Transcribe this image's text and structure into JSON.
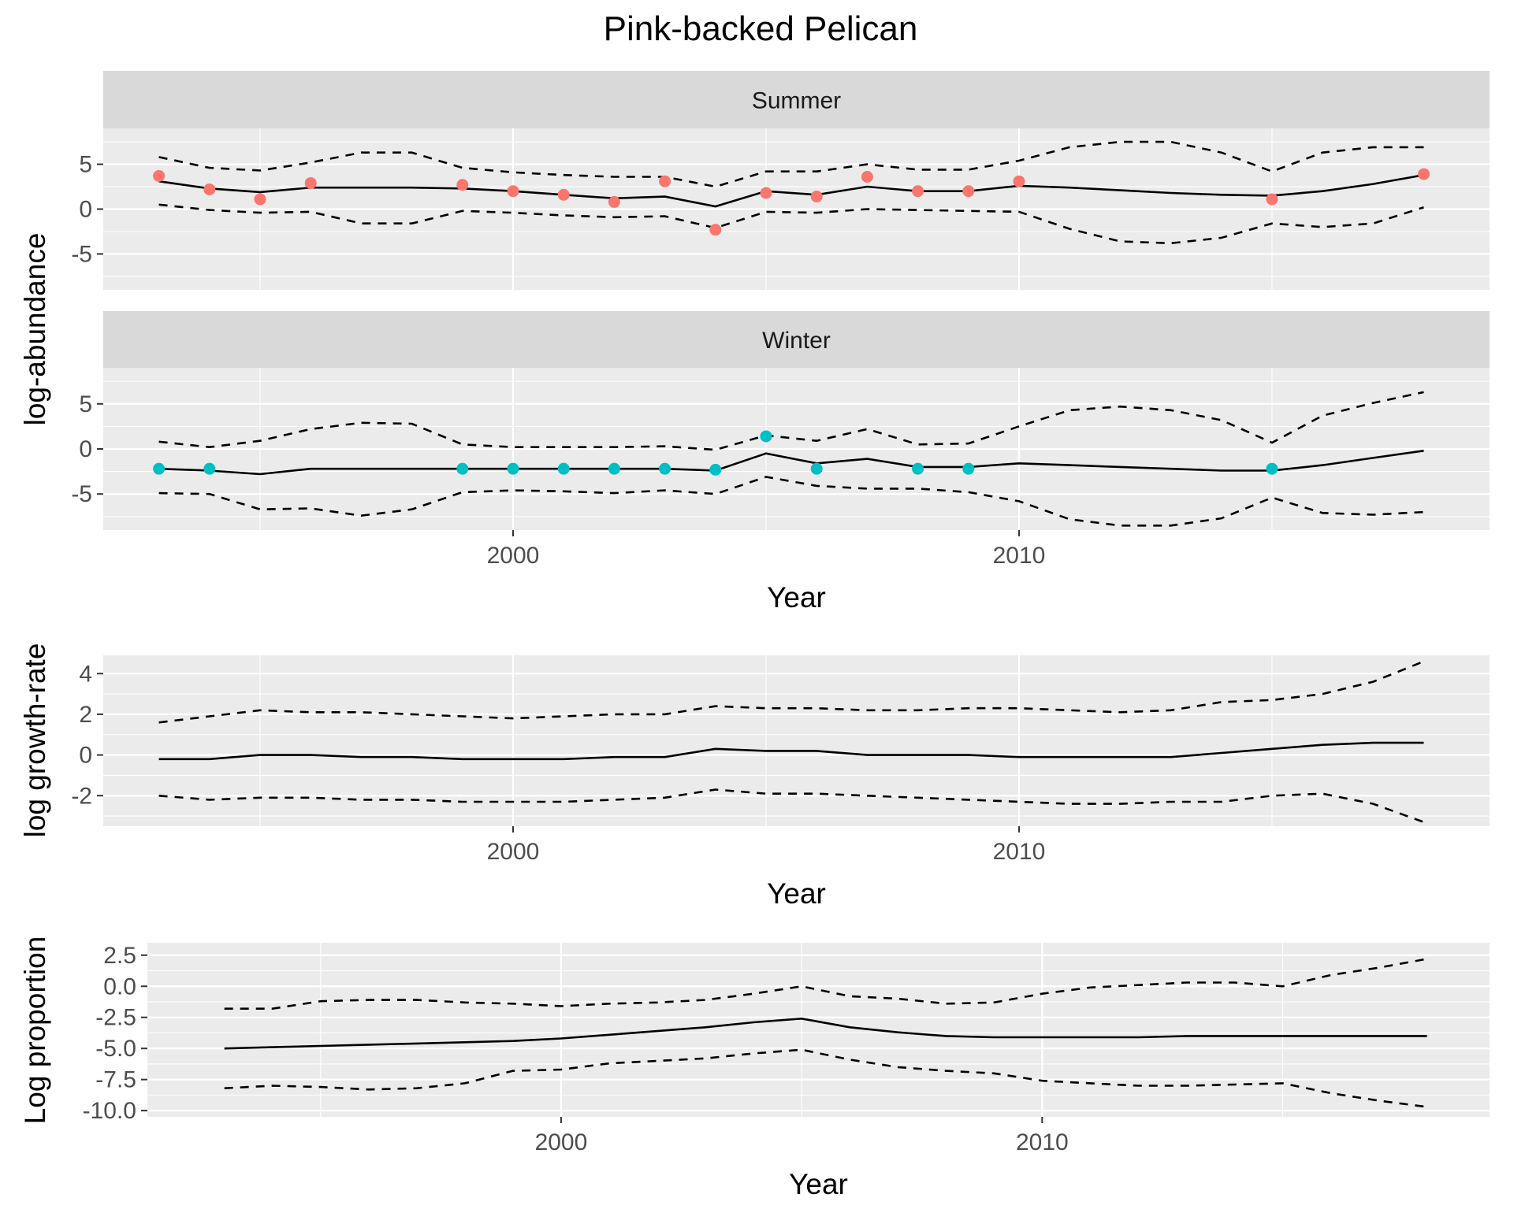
{
  "title": "Pink-backed Pelican",
  "colors": {
    "summer_points": "#F8766D",
    "winter_points": "#00BFC4",
    "line": "#000000",
    "panel_background": "#EBEBEB",
    "strip_background": "#D9D9D9"
  },
  "chart_data": [
    {
      "type": "line",
      "name": "abundance",
      "ylabel": "log-abundance",
      "xlabel": "Year",
      "xlim": [
        1991.9,
        2019.3
      ],
      "ylim": [
        -9,
        9
      ],
      "y_breaks": [
        -5,
        0,
        5
      ],
      "x_breaks": [
        2000,
        2010
      ],
      "grid": true,
      "facets": [
        {
          "strip": "Summer",
          "point_color": "#F8766D",
          "x": [
            1993,
            1994,
            1995,
            1996,
            1997,
            1998,
            1999,
            2000,
            2001,
            2002,
            2003,
            2004,
            2005,
            2006,
            2007,
            2008,
            2009,
            2010,
            2011,
            2012,
            2013,
            2014,
            2015,
            2016,
            2017,
            2018
          ],
          "estimate": [
            3.1,
            2.3,
            1.9,
            2.4,
            2.4,
            2.4,
            2.3,
            2.0,
            1.6,
            1.2,
            1.4,
            0.3,
            2.0,
            1.6,
            2.5,
            2.0,
            2.0,
            2.6,
            2.4,
            2.1,
            1.8,
            1.6,
            1.5,
            2.0,
            2.8,
            3.8
          ],
          "lower": [
            0.5,
            -0.1,
            -0.4,
            -0.3,
            -1.6,
            -1.6,
            -0.2,
            -0.4,
            -0.7,
            -0.9,
            -0.8,
            -2.1,
            -0.3,
            -0.4,
            0.0,
            -0.1,
            -0.2,
            -0.3,
            -2.2,
            -3.6,
            -3.8,
            -3.2,
            -1.6,
            -2.0,
            -1.6,
            0.2
          ],
          "upper": [
            5.8,
            4.6,
            4.3,
            5.2,
            6.3,
            6.3,
            4.6,
            4.1,
            3.8,
            3.6,
            3.6,
            2.5,
            4.2,
            4.2,
            5.0,
            4.4,
            4.4,
            5.4,
            6.9,
            7.5,
            7.5,
            6.3,
            4.2,
            6.3,
            6.9,
            6.9
          ],
          "observed": [
            {
              "x": 1993,
              "y": 3.7
            },
            {
              "x": 1994,
              "y": 2.2
            },
            {
              "x": 1995,
              "y": 1.1
            },
            {
              "x": 1996,
              "y": 2.9
            },
            {
              "x": 1999,
              "y": 2.7
            },
            {
              "x": 2000,
              "y": 2.0
            },
            {
              "x": 2001,
              "y": 1.6
            },
            {
              "x": 2002,
              "y": 0.8
            },
            {
              "x": 2003,
              "y": 3.1
            },
            {
              "x": 2004,
              "y": -2.3
            },
            {
              "x": 2005,
              "y": 1.8
            },
            {
              "x": 2006,
              "y": 1.4
            },
            {
              "x": 2007,
              "y": 3.6
            },
            {
              "x": 2008,
              "y": 2.0
            },
            {
              "x": 2009,
              "y": 2.0
            },
            {
              "x": 2010,
              "y": 3.1
            },
            {
              "x": 2015,
              "y": 1.1
            },
            {
              "x": 2018,
              "y": 3.9
            }
          ]
        },
        {
          "strip": "Winter",
          "point_color": "#00BFC4",
          "x": [
            1993,
            1994,
            1995,
            1996,
            1997,
            1998,
            1999,
            2000,
            2001,
            2002,
            2003,
            2004,
            2005,
            2006,
            2007,
            2008,
            2009,
            2010,
            2011,
            2012,
            2013,
            2014,
            2015,
            2016,
            2017,
            2018
          ],
          "estimate": [
            -2.2,
            -2.4,
            -2.8,
            -2.2,
            -2.2,
            -2.2,
            -2.2,
            -2.2,
            -2.2,
            -2.2,
            -2.2,
            -2.4,
            -0.5,
            -1.6,
            -1.1,
            -2.0,
            -2.0,
            -1.6,
            -1.8,
            -2.0,
            -2.2,
            -2.4,
            -2.4,
            -1.8,
            -1.0,
            -0.2
          ],
          "lower": [
            -4.9,
            -5.0,
            -6.7,
            -6.6,
            -7.4,
            -6.7,
            -4.8,
            -4.6,
            -4.7,
            -4.9,
            -4.6,
            -5.0,
            -3.1,
            -4.1,
            -4.4,
            -4.4,
            -4.8,
            -5.8,
            -7.8,
            -8.5,
            -8.5,
            -7.7,
            -5.4,
            -7.1,
            -7.3,
            -7.0
          ],
          "upper": [
            0.8,
            0.2,
            0.9,
            2.2,
            2.9,
            2.8,
            0.5,
            0.2,
            0.2,
            0.2,
            0.3,
            -0.1,
            1.5,
            0.9,
            2.2,
            0.5,
            0.6,
            2.5,
            4.3,
            4.7,
            4.3,
            3.2,
            0.7,
            3.7,
            5.1,
            6.3
          ],
          "observed": [
            {
              "x": 1993,
              "y": -2.2
            },
            {
              "x": 1994,
              "y": -2.2
            },
            {
              "x": 1999,
              "y": -2.2
            },
            {
              "x": 2000,
              "y": -2.2
            },
            {
              "x": 2001,
              "y": -2.2
            },
            {
              "x": 2002,
              "y": -2.2
            },
            {
              "x": 2003,
              "y": -2.2
            },
            {
              "x": 2004,
              "y": -2.3
            },
            {
              "x": 2005,
              "y": 1.4
            },
            {
              "x": 2006,
              "y": -2.2
            },
            {
              "x": 2008,
              "y": -2.2
            },
            {
              "x": 2009,
              "y": -2.2
            },
            {
              "x": 2015,
              "y": -2.2
            }
          ]
        }
      ]
    },
    {
      "type": "line",
      "name": "growth",
      "ylabel": "log growth-rate",
      "xlabel": "Year",
      "xlim": [
        1991.9,
        2019.3
      ],
      "ylim": [
        -3.5,
        4.9
      ],
      "y_breaks": [
        -2,
        0,
        2,
        4
      ],
      "x_breaks": [
        2000,
        2010
      ],
      "grid": true,
      "x": [
        1993,
        1994,
        1995,
        1996,
        1997,
        1998,
        1999,
        2000,
        2001,
        2002,
        2003,
        2004,
        2005,
        2006,
        2007,
        2008,
        2009,
        2010,
        2011,
        2012,
        2013,
        2014,
        2015,
        2016,
        2017,
        2018
      ],
      "estimate": [
        -0.2,
        -0.2,
        0.0,
        0.0,
        -0.1,
        -0.1,
        -0.2,
        -0.2,
        -0.2,
        -0.1,
        -0.1,
        0.3,
        0.2,
        0.2,
        0.0,
        0.0,
        0.0,
        -0.1,
        -0.1,
        -0.1,
        -0.1,
        0.1,
        0.3,
        0.5,
        0.6,
        0.6
      ],
      "lower": [
        -2.0,
        -2.2,
        -2.1,
        -2.1,
        -2.2,
        -2.2,
        -2.3,
        -2.3,
        -2.3,
        -2.2,
        -2.1,
        -1.7,
        -1.9,
        -1.9,
        -2.0,
        -2.1,
        -2.2,
        -2.3,
        -2.4,
        -2.4,
        -2.3,
        -2.3,
        -2.0,
        -1.9,
        -2.4,
        -3.3
      ],
      "upper": [
        1.6,
        1.9,
        2.2,
        2.1,
        2.1,
        2.0,
        1.9,
        1.8,
        1.9,
        2.0,
        2.0,
        2.4,
        2.3,
        2.3,
        2.2,
        2.2,
        2.3,
        2.3,
        2.2,
        2.1,
        2.2,
        2.6,
        2.7,
        3.0,
        3.6,
        4.6
      ]
    },
    {
      "type": "line",
      "name": "proportion",
      "ylabel": "Log proportion",
      "xlabel": "Year",
      "xlim": [
        1991.4,
        2019.3
      ],
      "ylim": [
        -10.5,
        3.5
      ],
      "y_breaks": [
        -10.0,
        -7.5,
        -5.0,
        -2.5,
        0.0,
        2.5
      ],
      "y_tick_labels": [
        "-10.0",
        "-7.5",
        "-5.0",
        "-2.5",
        "0.0",
        "2.5"
      ],
      "x_breaks": [
        2000,
        2010
      ],
      "grid": true,
      "x": [
        1993,
        1994,
        1995,
        1996,
        1997,
        1998,
        1999,
        2000,
        2001,
        2002,
        2003,
        2004,
        2005,
        2006,
        2007,
        2008,
        2009,
        2010,
        2011,
        2012,
        2013,
        2014,
        2015,
        2016,
        2017,
        2018
      ],
      "estimate": [
        -5.0,
        -4.9,
        -4.8,
        -4.7,
        -4.6,
        -4.5,
        -4.4,
        -4.2,
        -3.9,
        -3.6,
        -3.3,
        -2.9,
        -2.6,
        -3.3,
        -3.7,
        -4.0,
        -4.1,
        -4.1,
        -4.1,
        -4.1,
        -4.0,
        -4.0,
        -4.0,
        -4.0,
        -4.0,
        -4.0
      ],
      "lower": [
        -8.2,
        -8.0,
        -8.1,
        -8.3,
        -8.2,
        -7.8,
        -6.8,
        -6.7,
        -6.2,
        -6.0,
        -5.8,
        -5.4,
        -5.1,
        -5.9,
        -6.5,
        -6.8,
        -7.0,
        -7.6,
        -7.8,
        -8.0,
        -8.0,
        -7.9,
        -7.8,
        -8.6,
        -9.2,
        -9.7
      ],
      "upper": [
        -1.8,
        -1.8,
        -1.2,
        -1.1,
        -1.1,
        -1.3,
        -1.4,
        -1.6,
        -1.4,
        -1.3,
        -1.1,
        -0.6,
        0.0,
        -0.8,
        -1.0,
        -1.4,
        -1.3,
        -0.6,
        -0.1,
        0.1,
        0.3,
        0.3,
        0.0,
        0.9,
        1.5,
        2.2
      ]
    }
  ]
}
